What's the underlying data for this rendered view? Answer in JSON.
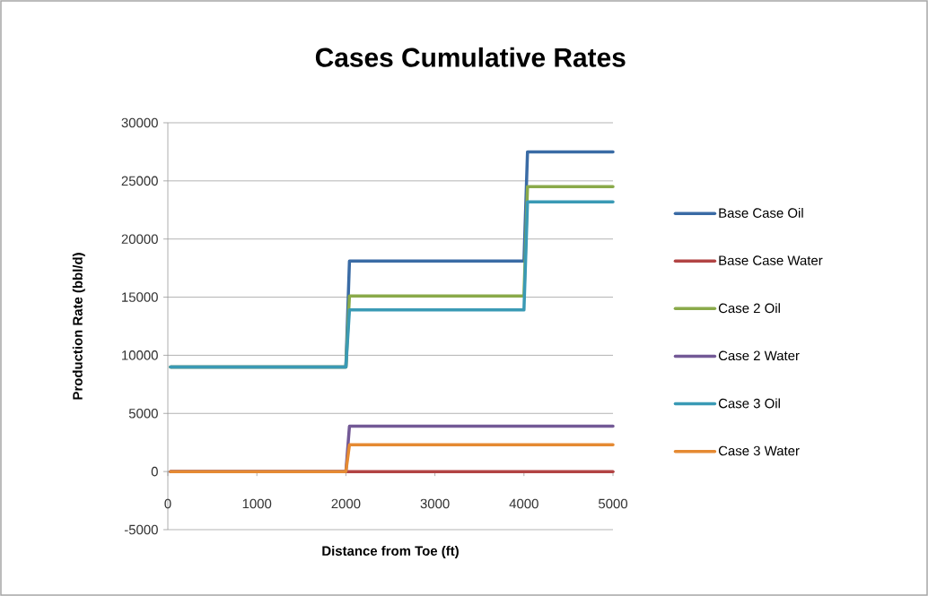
{
  "chart_data": {
    "type": "line",
    "title": "Cases Cumulative Rates",
    "xlabel": "Distance from Toe (ft)",
    "ylabel": "Production Rate (bbl/d)",
    "x": [
      30,
      2000,
      2040,
      4000,
      4040,
      5000
    ],
    "series": [
      {
        "name": "Base Case Oil",
        "color": "#3a6ba5",
        "values": [
          9000,
          9000,
          18100,
          18100,
          27500,
          27500
        ]
      },
      {
        "name": "Base Case Water",
        "color": "#b24444",
        "values": [
          0,
          0,
          0,
          0,
          0,
          0
        ]
      },
      {
        "name": "Case 2 Oil",
        "color": "#8aaa4a",
        "values": [
          9000,
          9000,
          15100,
          15100,
          24500,
          24500
        ]
      },
      {
        "name": "Case 2 Water",
        "color": "#735996",
        "values": [
          0,
          0,
          3900,
          3900,
          3900,
          3900
        ]
      },
      {
        "name": "Case 3 Oil",
        "color": "#3a9ab5",
        "values": [
          9000,
          9000,
          13900,
          13900,
          23200,
          23200
        ]
      },
      {
        "name": "Case 3 Water",
        "color": "#e58a32",
        "values": [
          0,
          0,
          2300,
          2300,
          2300,
          2300
        ]
      }
    ],
    "xlim": [
      0,
      5000
    ],
    "xticks": [
      0,
      1000,
      2000,
      3000,
      4000,
      5000
    ],
    "ylim": [
      -5000,
      30000
    ],
    "yticks": [
      -5000,
      0,
      5000,
      10000,
      15000,
      20000,
      25000,
      30000
    ],
    "grid": "y",
    "legend": "right",
    "marker": "none",
    "line_style": "solid"
  }
}
